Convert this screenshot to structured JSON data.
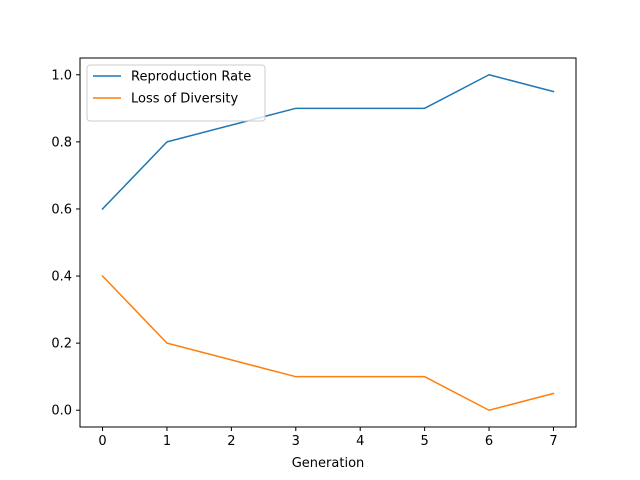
{
  "chart_data": {
    "type": "line",
    "title": "",
    "xlabel": "Generation",
    "ylabel": "",
    "x": [
      0,
      1,
      2,
      3,
      4,
      5,
      6,
      7
    ],
    "xlim": [
      -0.35,
      7.35
    ],
    "ylim": [
      -0.05,
      1.05
    ],
    "xticks": [
      "0",
      "1",
      "2",
      "3",
      "4",
      "5",
      "6",
      "7"
    ],
    "yticks": [
      "0.0",
      "0.2",
      "0.4",
      "0.6",
      "0.8",
      "1.0"
    ],
    "grid": false,
    "legend_position": "upper-left",
    "series": [
      {
        "name": "Reproduction Rate",
        "color": "#1f77b4",
        "values": [
          0.6,
          0.8,
          0.85,
          0.9,
          0.9,
          0.9,
          1.0,
          0.95
        ]
      },
      {
        "name": "Loss of Diversity",
        "color": "#ff7f0e",
        "values": [
          0.4,
          0.2,
          0.15,
          0.1,
          0.1,
          0.1,
          0.0,
          0.05
        ]
      }
    ]
  }
}
